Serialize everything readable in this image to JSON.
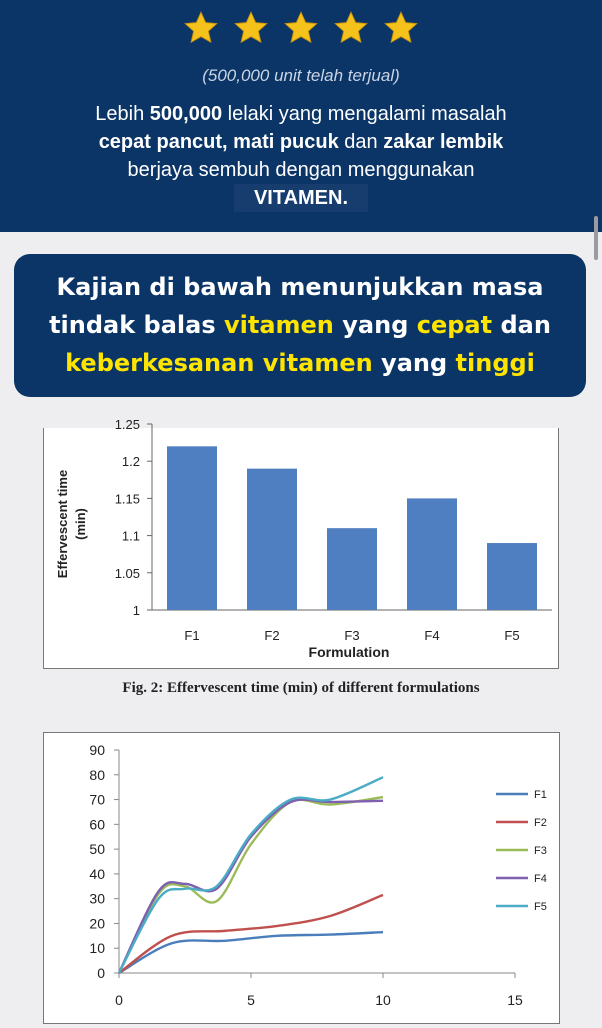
{
  "rating": {
    "stars": 5,
    "max": 5,
    "star_color": "#f5c21b"
  },
  "hero": {
    "sold_text": "(500,000 unit telah terjual)",
    "line1_pre": "Lebih ",
    "line1_bold": "500,000",
    "line1_post": " lelaki yang mengalami masalah",
    "line2_b1": "cepat pancut, mati pucuk",
    "line2_mid": " dan ",
    "line2_b2": "zakar lembik",
    "line3": "berjaya sembuh dengan menggunakan",
    "line4_bold": "VITAMEN."
  },
  "callout": {
    "p1": "Kajian di bawah menunjukkan masa",
    "p2": "tindak balas ",
    "p3": "vitamen",
    "p4": " yang ",
    "p5": "cepat",
    "p6": " dan",
    "p7": "keberkesanan",
    "p8": " ",
    "p9": "vitamen",
    "p10": " yang ",
    "p11": "tinggi",
    "highlight_color": "#ffe400",
    "bg_color": "#0b3566"
  },
  "figure1": {
    "caption": "Fig. 2: Effervescent time (min) of different formulations"
  },
  "chart_data": [
    {
      "type": "bar",
      "categories": [
        "F1",
        "F2",
        "F3",
        "F4",
        "F5"
      ],
      "values": [
        1.22,
        1.19,
        1.11,
        1.15,
        1.09
      ],
      "xlabel": "Formulation",
      "ylabel": "Effervescent time (min)",
      "ylim": [
        1,
        1.25
      ],
      "yticks": [
        "1",
        "1.05",
        "1.1",
        "1.15",
        "1.2",
        "1.25"
      ],
      "bar_color": "#4f7fc1"
    },
    {
      "type": "line",
      "xlim": [
        0,
        15
      ],
      "ylim": [
        0,
        90
      ],
      "xticks": [
        "0",
        "5",
        "10",
        "15"
      ],
      "yticks": [
        "0",
        "10",
        "20",
        "30",
        "40",
        "50",
        "60",
        "70",
        "80",
        "90"
      ],
      "legend_position": "right",
      "series": [
        {
          "name": "F1",
          "color": "#4a7ebb",
          "x": [
            0,
            2,
            4,
            6,
            8,
            10
          ],
          "y": [
            0,
            12,
            13,
            15,
            15.5,
            16.5
          ]
        },
        {
          "name": "F2",
          "color": "#c0504d",
          "x": [
            0,
            2,
            4,
            6,
            8,
            10
          ],
          "y": [
            0,
            15,
            17,
            19,
            23,
            31.5
          ]
        },
        {
          "name": "F3",
          "color": "#9bbb59",
          "x": [
            0,
            1.5,
            2.5,
            3.7,
            5,
            6.5,
            8,
            10
          ],
          "y": [
            0,
            32,
            35,
            29,
            52,
            69,
            68,
            71
          ]
        },
        {
          "name": "F4",
          "color": "#7f5fb0",
          "x": [
            0,
            1.5,
            2.5,
            3.7,
            5,
            6.5,
            8,
            10
          ],
          "y": [
            0,
            33,
            36,
            34,
            55,
            69,
            69,
            69.5
          ]
        },
        {
          "name": "F5",
          "color": "#4bacc6",
          "x": [
            0,
            1.5,
            2.5,
            3.7,
            5,
            6.5,
            8,
            10
          ],
          "y": [
            0,
            30,
            34,
            35,
            56,
            70,
            70,
            79
          ]
        }
      ]
    }
  ]
}
